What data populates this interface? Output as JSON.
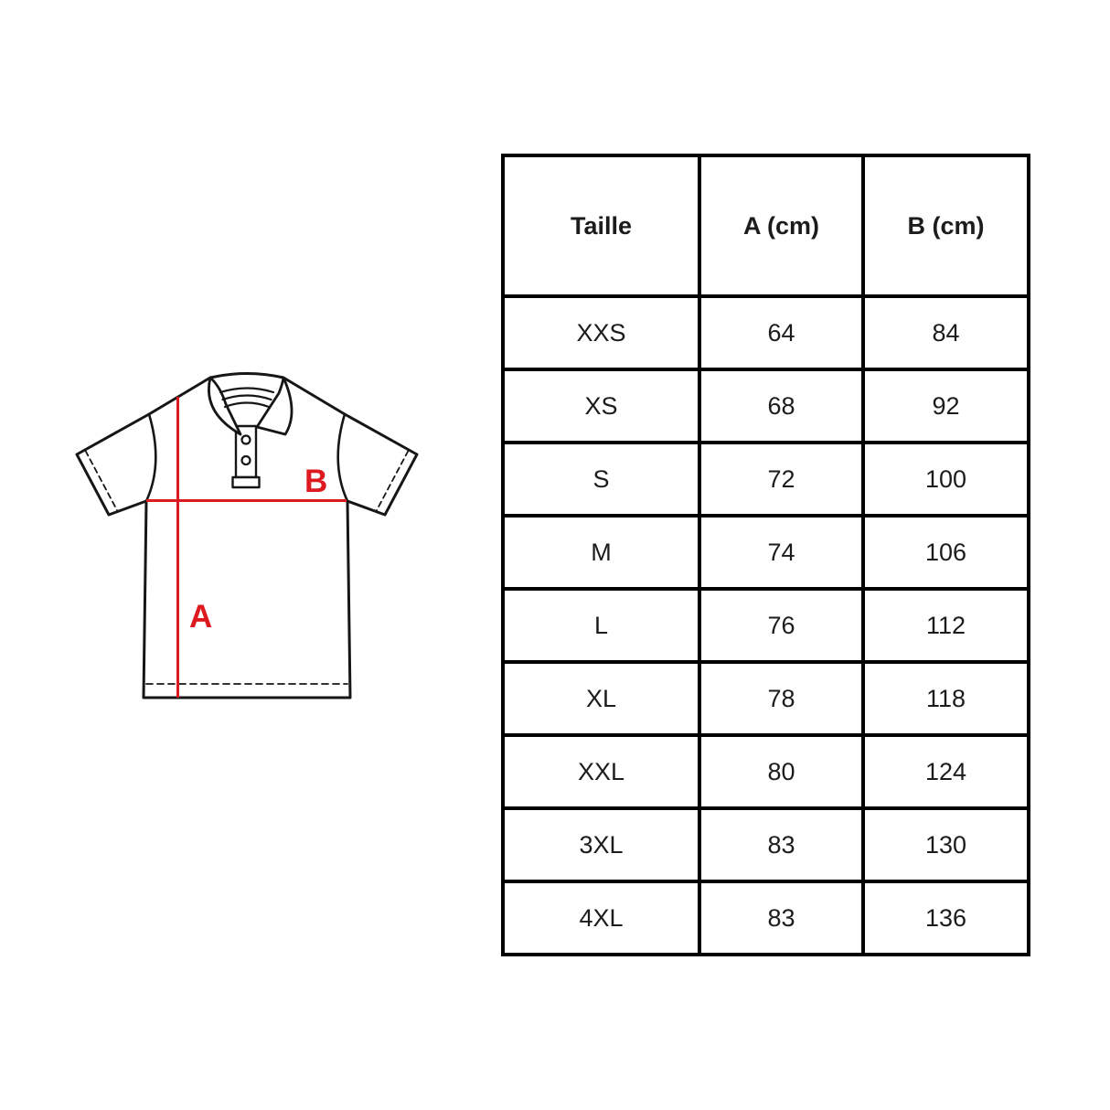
{
  "page": {
    "background_color": "#ffffff",
    "description": "Polo shirt size guide with measurement diagram and size table"
  },
  "figure": {
    "type": "polo-shirt-measurement-diagram",
    "outline_color": "#161616",
    "accent_color": "#dd1a20",
    "measure_labels": {
      "a": "A",
      "b": "B"
    }
  },
  "table": {
    "border_color": "#000000",
    "headers": [
      "Taille",
      "A (cm)",
      "B (cm)"
    ],
    "rows": [
      [
        "XXS",
        "64",
        "84"
      ],
      [
        "XS",
        "68",
        "92"
      ],
      [
        "S",
        "72",
        "100"
      ],
      [
        "M",
        "74",
        "106"
      ],
      [
        "L",
        "76",
        "112"
      ],
      [
        "XL",
        "78",
        "118"
      ],
      [
        "XXL",
        "80",
        "124"
      ],
      [
        "3XL",
        "83",
        "130"
      ],
      [
        "4XL",
        "83",
        "136"
      ]
    ]
  }
}
